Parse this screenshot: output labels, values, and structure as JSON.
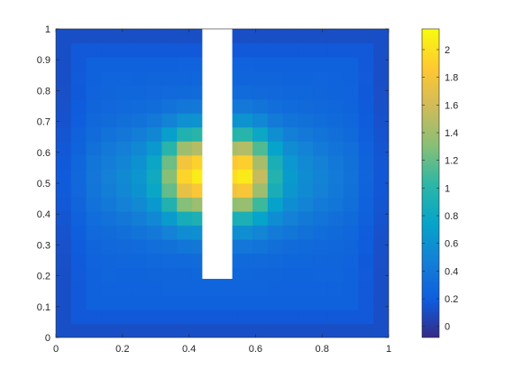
{
  "chart_data": {
    "type": "heatmap",
    "title": "",
    "xlabel": "",
    "ylabel": "",
    "xlim": [
      0,
      1
    ],
    "ylim": [
      0,
      1
    ],
    "grid": false,
    "colormap": "parula",
    "colorbar": {
      "placement": "right",
      "range": [
        -0.08,
        2.15
      ],
      "ticks": [
        "0",
        "0.2",
        "0.4",
        "0.6",
        "0.8",
        "1",
        "1.2",
        "1.4",
        "1.6",
        "1.8",
        "2"
      ]
    },
    "x_ticks": [
      "0",
      "0.2",
      "0.4",
      "0.6",
      "0.8",
      "1"
    ],
    "y_ticks": [
      "0",
      "0.1",
      "0.2",
      "0.3",
      "0.4",
      "0.5",
      "0.6",
      "0.7",
      "0.8",
      "0.9",
      "1"
    ],
    "grid_size": [
      22,
      22
    ],
    "field": {
      "description": "symmetric field peaking next to the slot at y≈0.5",
      "peak_value": 2.1,
      "peak_points": [
        {
          "x": 0.41,
          "y": 0.53
        },
        {
          "x": 0.56,
          "y": 0.53
        }
      ],
      "center_y": 0.52,
      "baseline": 0.25
    },
    "masked_region": {
      "x": [
        0.44,
        0.53
      ],
      "y": [
        0.19,
        1.0
      ],
      "color": "#ffffff"
    }
  }
}
